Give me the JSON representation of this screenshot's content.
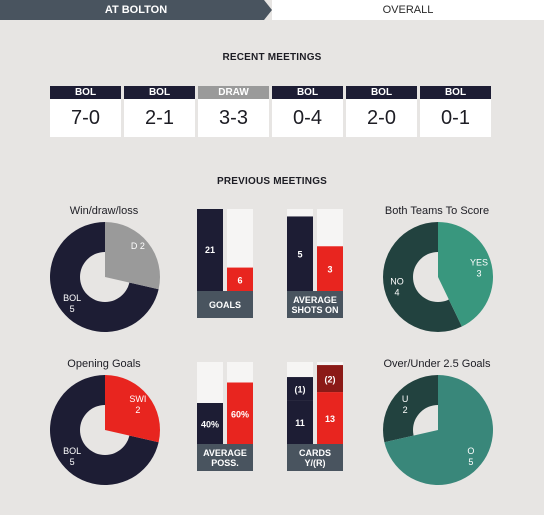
{
  "tabs": [
    {
      "label": "AT BOLTON",
      "active": true
    },
    {
      "label": "OVERALL",
      "active": false
    }
  ],
  "recent_meetings": {
    "title": "RECENT MEETINGS",
    "items": [
      {
        "result": "BOL",
        "score": "7-0",
        "color": "#1d1d34"
      },
      {
        "result": "BOL",
        "score": "2-1",
        "color": "#1d1d34"
      },
      {
        "result": "DRAW",
        "score": "3-3",
        "color": "#9a9a9a"
      },
      {
        "result": "BOL",
        "score": "0-4",
        "color": "#1d1d34"
      },
      {
        "result": "BOL",
        "score": "2-0",
        "color": "#1d1d34"
      },
      {
        "result": "BOL",
        "score": "0-1",
        "color": "#1d1d34"
      }
    ]
  },
  "previous_meetings": {
    "title": "PREVIOUS MEETINGS"
  },
  "chart_data": [
    {
      "type": "pie",
      "title": "Win/draw/loss",
      "slices": [
        {
          "label": "BOL",
          "value": 5,
          "color": "#1d1d34"
        },
        {
          "label": "D",
          "value": 2,
          "color": "#9a9a9a"
        }
      ]
    },
    {
      "type": "bar",
      "title": "GOALS",
      "values": [
        21,
        6
      ],
      "colors": [
        "#1d1d34",
        "#e8251f"
      ],
      "labels": [
        "21",
        "6"
      ]
    },
    {
      "type": "bar",
      "title": "AVERAGE SHOTS ON",
      "values": [
        5,
        3
      ],
      "colors": [
        "#1d1d34",
        "#e8251f"
      ],
      "labels": [
        "5",
        "3"
      ]
    },
    {
      "type": "pie",
      "title": "Both Teams To Score",
      "slices": [
        {
          "label": "NO",
          "value": 4,
          "color": "#22423f"
        },
        {
          "label": "YES",
          "value": 3,
          "color": "#39977e"
        }
      ]
    },
    {
      "type": "pie",
      "title": "Opening Goals",
      "slices": [
        {
          "label": "BOL",
          "value": 5,
          "color": "#1d1d34"
        },
        {
          "label": "SWI",
          "value": 2,
          "color": "#e8251f"
        }
      ]
    },
    {
      "type": "bar",
      "title": "AVERAGE POSS.",
      "values": [
        40,
        60
      ],
      "colors": [
        "#1d1d34",
        "#e8251f"
      ],
      "labels": [
        "40%",
        "60%"
      ]
    },
    {
      "type": "bar",
      "title": "CARDS Y/(R)",
      "yellow": [
        11,
        13
      ],
      "red": [
        1,
        2
      ],
      "colors": [
        "#1d1d34",
        "#e8251f"
      ],
      "red_colors": [
        "#1d1d34",
        "#8b1a17"
      ],
      "labels": [
        "11",
        "13"
      ],
      "red_labels": [
        "(1)",
        "(2)"
      ]
    },
    {
      "type": "pie",
      "title": "Over/Under 2.5 Goals",
      "slices": [
        {
          "label": "U",
          "value": 2,
          "color": "#22423f"
        },
        {
          "label": "O",
          "value": 5,
          "color": "#39877a"
        }
      ]
    }
  ]
}
